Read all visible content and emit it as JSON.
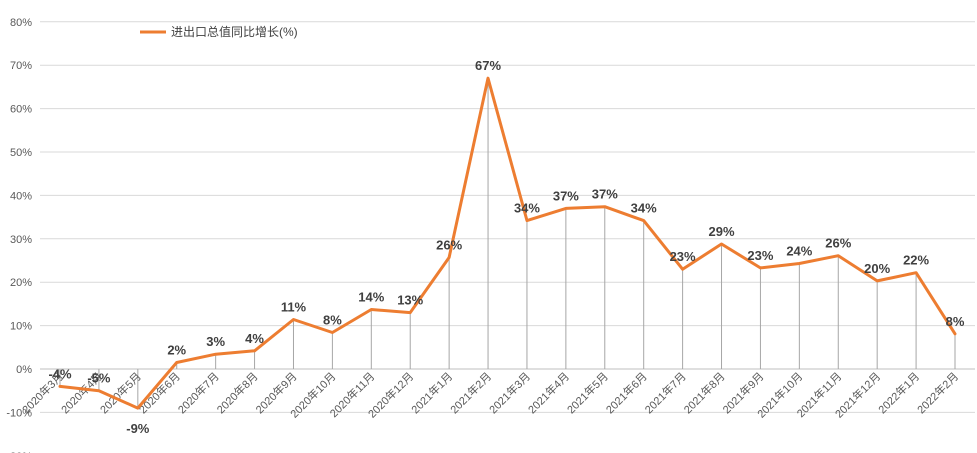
{
  "chart_data": {
    "type": "line",
    "title": "",
    "xlabel": "",
    "ylabel": "",
    "y_unit": "%",
    "ylim": [
      -20,
      80
    ],
    "yticks": [
      "-20%",
      "-10%",
      "0%",
      "10%",
      "20%",
      "30%",
      "40%",
      "50%",
      "60%",
      "70%",
      "80%"
    ],
    "grid": true,
    "legend_position": "top-left",
    "categories": [
      "2020年3月",
      "2020年4月",
      "2020年5月",
      "2020年6月",
      "2020年7月",
      "2020年8月",
      "2020年9月",
      "2020年10月",
      "2020年11月",
      "2020年12月",
      "2021年1月",
      "2021年2月",
      "2021年3月",
      "2021年4月",
      "2021年5月",
      "2021年6月",
      "2021年7月",
      "2021年8月",
      "2021年9月",
      "2021年10月",
      "2021年11月",
      "2021年12月",
      "2022年1月",
      "2022年2月"
    ],
    "series": [
      {
        "name": "进出口总值同比增长(%)",
        "color": "#ED7D31",
        "values": [
          -4,
          -5,
          -9,
          1.5,
          3.4,
          4.2,
          11.4,
          8.4,
          13.7,
          13,
          25.7,
          67,
          34.2,
          37,
          37.4,
          34.2,
          23,
          28.8,
          23.3,
          24.3,
          26.1,
          20.3,
          22.2,
          8.1
        ],
        "labels": [
          "-4%",
          "-5%",
          "-9%",
          "2%",
          "3%",
          "4%",
          "11%",
          "8%",
          "14%",
          "13%",
          "26%",
          "67%",
          "34%",
          "37%",
          "37%",
          "34%",
          "23%",
          "29%",
          "23%",
          "24%",
          "26%",
          "20%",
          "22%",
          "8%"
        ]
      }
    ]
  }
}
